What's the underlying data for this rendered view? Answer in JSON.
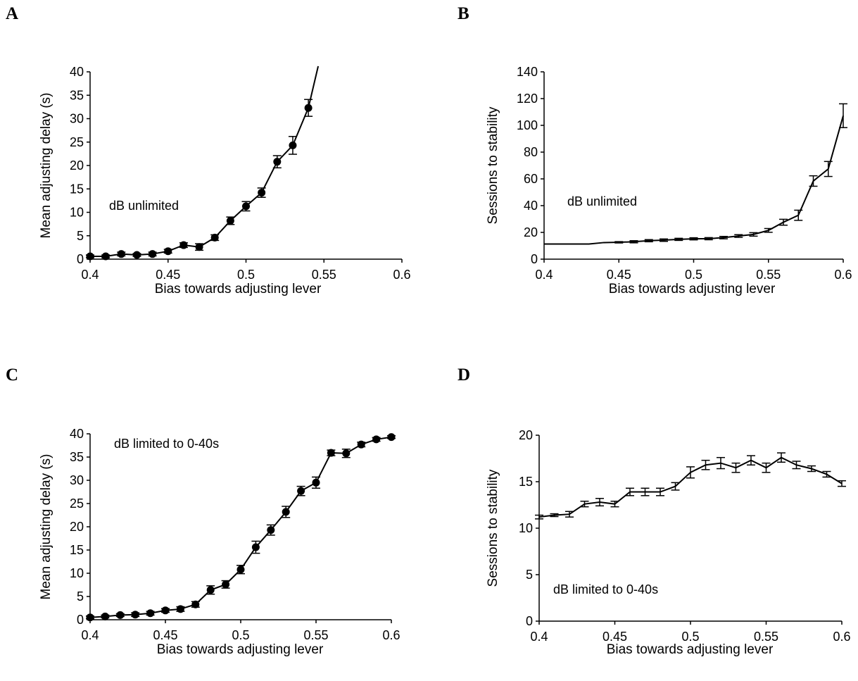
{
  "chart_data": [
    {
      "panel_label": "A",
      "type": "line",
      "xlabel": "Bias towards adjusting lever",
      "ylabel": "Mean adjusting delay (s)",
      "annotation": "dB unlimited",
      "xlim": [
        0.4,
        0.6
      ],
      "ylim": [
        0,
        40
      ],
      "xticks": [
        "0.4",
        "0.45",
        "0.5",
        "0.55",
        "0.6"
      ],
      "yticks": [
        "0",
        "5",
        "10",
        "15",
        "20",
        "25",
        "30",
        "35",
        "40"
      ],
      "markers": true,
      "x": [
        0.4,
        0.41,
        0.42,
        0.43,
        0.44,
        0.45,
        0.46,
        0.47,
        0.48,
        0.49,
        0.5,
        0.51,
        0.52,
        0.53,
        0.54
      ],
      "y": [
        0.6,
        0.6,
        1.1,
        0.9,
        1.1,
        1.7,
        3.0,
        2.6,
        4.6,
        8.2,
        11.3,
        14.2,
        20.8,
        24.3,
        32.3
      ],
      "err": [
        0.3,
        0.3,
        0.4,
        0.3,
        0.4,
        0.4,
        0.5,
        0.7,
        0.6,
        0.8,
        1.0,
        1.0,
        1.3,
        1.9,
        1.8
      ],
      "line_extension": [
        {
          "x": 0.54,
          "y": 32.3
        },
        {
          "x": 0.5463,
          "y": 41.2
        }
      ]
    },
    {
      "panel_label": "B",
      "type": "line",
      "xlabel": "Bias towards adjusting lever",
      "ylabel": "Sessions to stability",
      "annotation": "dB unlimited",
      "xlim": [
        0.4,
        0.6
      ],
      "ylim": [
        0,
        140
      ],
      "xticks": [
        "0.4",
        "0.45",
        "0.5",
        "0.55",
        "0.6"
      ],
      "yticks": [
        "0",
        "20",
        "40",
        "60",
        "80",
        "100",
        "120",
        "140"
      ],
      "markers": false,
      "x": [
        0.4,
        0.41,
        0.42,
        0.43,
        0.44,
        0.45,
        0.46,
        0.47,
        0.48,
        0.49,
        0.5,
        0.51,
        0.52,
        0.53,
        0.54,
        0.55,
        0.56,
        0.57,
        0.58,
        0.59,
        0.6
      ],
      "y": [
        11.3,
        11.3,
        11.3,
        11.3,
        12.4,
        12.6,
        13.0,
        13.8,
        14.2,
        14.8,
        15.2,
        15.3,
        16.1,
        17.3,
        18.5,
        21.5,
        27.6,
        32.8,
        58.4,
        67.4,
        107.2
      ],
      "err": [
        0,
        0,
        0,
        0,
        0,
        0.5,
        0.8,
        0.8,
        0.9,
        0.8,
        0.8,
        0.8,
        0.9,
        1.0,
        1.3,
        1.4,
        2.2,
        3.8,
        3.9,
        5.6,
        8.9
      ]
    },
    {
      "panel_label": "C",
      "type": "line",
      "xlabel": "Bias towards adjusting lever",
      "ylabel": "Mean adjusting delay (s)",
      "annotation": "dB limited to 0-40s",
      "xlim": [
        0.4,
        0.6
      ],
      "ylim": [
        0,
        40
      ],
      "xticks": [
        "0.4",
        "0.45",
        "0.5",
        "0.55",
        "0.6"
      ],
      "yticks": [
        "0",
        "5",
        "10",
        "15",
        "20",
        "25",
        "30",
        "35",
        "40"
      ],
      "markers": true,
      "x": [
        0.4,
        0.41,
        0.42,
        0.43,
        0.44,
        0.45,
        0.46,
        0.47,
        0.48,
        0.49,
        0.5,
        0.51,
        0.52,
        0.53,
        0.54,
        0.55,
        0.56,
        0.57,
        0.58,
        0.59,
        0.6
      ],
      "y": [
        0.5,
        0.7,
        1.0,
        1.1,
        1.4,
        2.0,
        2.3,
        3.3,
        6.4,
        7.6,
        10.8,
        15.6,
        19.3,
        23.2,
        27.7,
        29.5,
        35.9,
        35.8,
        37.7,
        38.8,
        39.3
      ],
      "err": [
        0.3,
        0.3,
        0.3,
        0.4,
        0.4,
        0.4,
        0.5,
        0.6,
        0.9,
        0.8,
        0.9,
        1.3,
        1.1,
        1.2,
        1.0,
        1.2,
        0.6,
        0.9,
        0.5,
        0.4,
        0.3
      ]
    },
    {
      "panel_label": "D",
      "type": "line",
      "xlabel": "Bias towards adjusting lever",
      "ylabel": "Sessions to stability",
      "annotation": "dB limited to 0-40s",
      "xlim": [
        0.4,
        0.6
      ],
      "ylim": [
        0,
        20
      ],
      "xticks": [
        "0.4",
        "0.45",
        "0.5",
        "0.55",
        "0.6"
      ],
      "yticks": [
        "0",
        "5",
        "10",
        "15",
        "20"
      ],
      "markers": false,
      "x": [
        0.4,
        0.41,
        0.42,
        0.43,
        0.44,
        0.45,
        0.46,
        0.47,
        0.48,
        0.49,
        0.5,
        0.51,
        0.52,
        0.53,
        0.54,
        0.55,
        0.56,
        0.57,
        0.58,
        0.59,
        0.6
      ],
      "y": [
        11.2,
        11.4,
        11.5,
        12.6,
        12.8,
        12.6,
        13.9,
        13.9,
        13.9,
        14.5,
        16.0,
        16.8,
        17.0,
        16.5,
        17.3,
        16.5,
        17.6,
        16.8,
        16.4,
        15.8,
        14.8
      ],
      "err": [
        0.2,
        0.15,
        0.3,
        0.3,
        0.4,
        0.3,
        0.4,
        0.4,
        0.4,
        0.4,
        0.6,
        0.5,
        0.6,
        0.5,
        0.5,
        0.5,
        0.5,
        0.4,
        0.3,
        0.3,
        0.3
      ]
    }
  ]
}
